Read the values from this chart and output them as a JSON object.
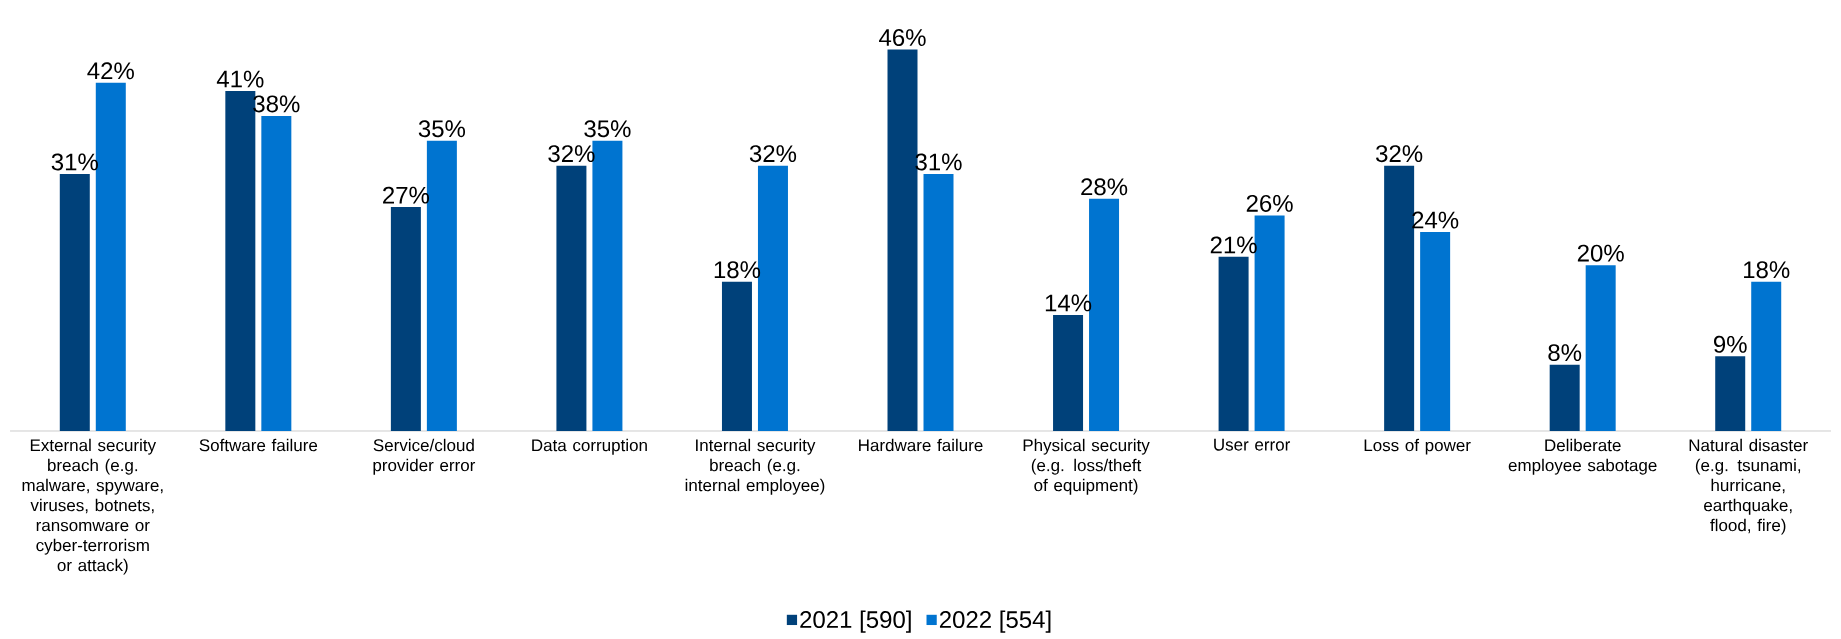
{
  "chart_data": {
    "type": "bar",
    "categories": [
      "External security breach (e.g. malware, spyware, viruses, botnets, ransomware or cyber-terrorism or attack)",
      "Software failure",
      "Service/cloud provider error",
      "Data corruption",
      "Internal security breach (e.g. internal employee)",
      "Hardware failure",
      "Physical security (e.g. loss/theft of equipment)",
      "User error",
      "Loss of power",
      "Deliberate employee sabotage",
      "Natural disaster (e.g. tsunami, hurricane, earthquake, flood, fire)"
    ],
    "series": [
      {
        "name": "2021 [590]",
        "color": "#00417a",
        "values": [
          31,
          41,
          27,
          32,
          18,
          46,
          14,
          21,
          32,
          8,
          9
        ],
        "value_labels": [
          "31%",
          "41%",
          "27%",
          "32%",
          "18%",
          "46%",
          "14%",
          "21%",
          "32%",
          "8%",
          "9%"
        ]
      },
      {
        "name": "2022 [554]",
        "color": "#0074d0",
        "values": [
          42,
          38,
          35,
          35,
          32,
          31,
          28,
          26,
          24,
          20,
          18
        ],
        "value_labels": [
          "42%",
          "38%",
          "35%",
          "35%",
          "32%",
          "31%",
          "28%",
          "26%",
          "24%",
          "20%",
          "18%"
        ]
      }
    ],
    "legend": "bottom"
  }
}
